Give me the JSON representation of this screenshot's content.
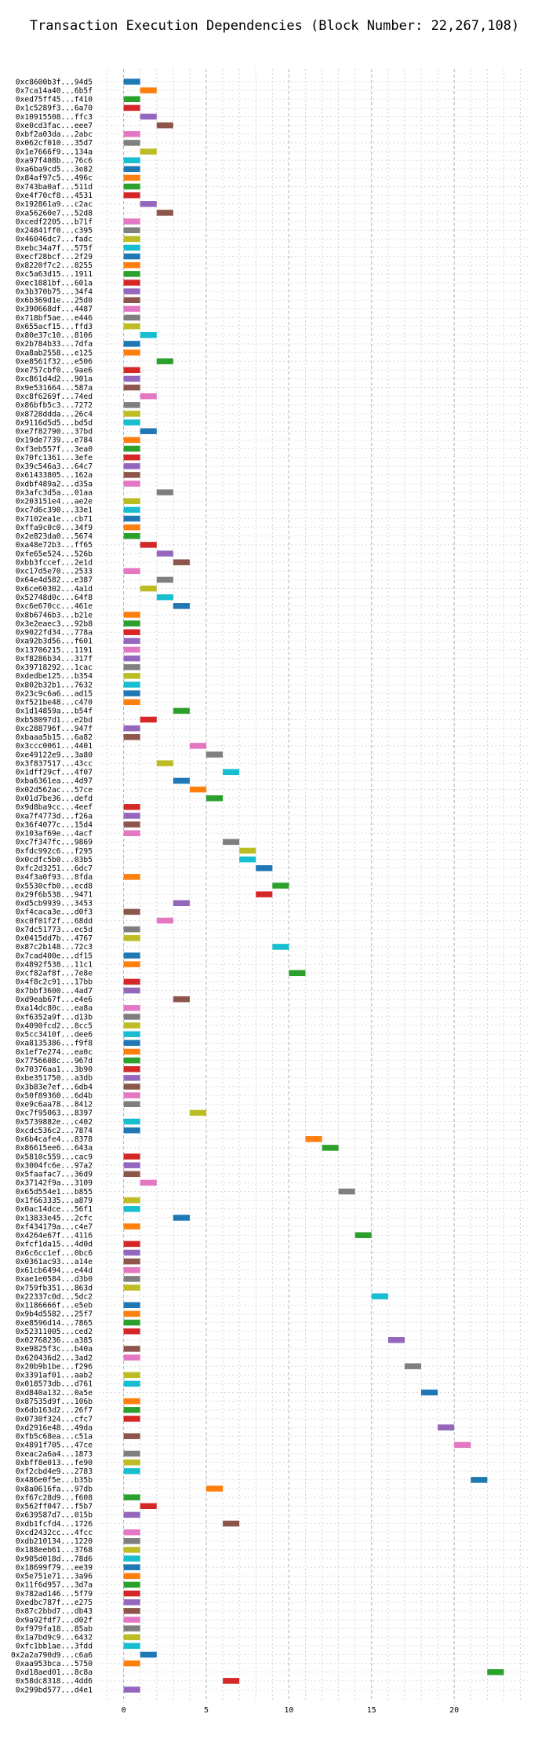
{
  "chart_data": {
    "type": "bar",
    "orientation": "horizontal-gantt",
    "title": "Transaction Execution Dependencies (Block Number: 22,267,108)",
    "xlabel": "",
    "ylabel": "",
    "xlim": [
      -1.5,
      24.5
    ],
    "xticks": [
      0,
      5,
      10,
      15,
      20
    ],
    "grid": true,
    "legend": "none",
    "bar_width": 1,
    "colors": {
      "blue": "#1f77b4",
      "orange": "#ff7f0e",
      "green": "#2ca02c",
      "red": "#d62728",
      "purple": "#9467bd",
      "brown": "#8c564b",
      "pink": "#e377c2",
      "gray": "#7f7f7f",
      "olive": "#bcbd22",
      "cyan": "#17becf"
    },
    "transactions": [
      {
        "label": "0xc8600b3f...94d5",
        "start": 0,
        "color": "blue"
      },
      {
        "label": "0x7ca14a40...6b5f",
        "start": 1,
        "color": "orange"
      },
      {
        "label": "0xed75ff45...f410",
        "start": 0,
        "color": "green"
      },
      {
        "label": "0x1c5289f3...6a70",
        "start": 0,
        "color": "red"
      },
      {
        "label": "0x10915508...ffc3",
        "start": 1,
        "color": "purple"
      },
      {
        "label": "0xe0cd3fac...eee7",
        "start": 2,
        "color": "brown"
      },
      {
        "label": "0xbf2a03da...2abc",
        "start": 0,
        "color": "pink"
      },
      {
        "label": "0x062cf010...35d7",
        "start": 0,
        "color": "gray"
      },
      {
        "label": "0x1e7666f9...134a",
        "start": 1,
        "color": "olive"
      },
      {
        "label": "0xa97f408b...76c6",
        "start": 0,
        "color": "cyan"
      },
      {
        "label": "0xa6ba9cd5...3e82",
        "start": 0,
        "color": "blue"
      },
      {
        "label": "0x84af97c5...496c",
        "start": 0,
        "color": "orange"
      },
      {
        "label": "0x743ba0af...511d",
        "start": 0,
        "color": "green"
      },
      {
        "label": "0xe4f70cf8...4531",
        "start": 0,
        "color": "red"
      },
      {
        "label": "0x192861a9...c2ac",
        "start": 1,
        "color": "purple"
      },
      {
        "label": "0xa56260e7...52d8",
        "start": 2,
        "color": "brown"
      },
      {
        "label": "0xcedf2205...b71f",
        "start": 0,
        "color": "pink"
      },
      {
        "label": "0x24841ff0...c395",
        "start": 0,
        "color": "gray"
      },
      {
        "label": "0x46046dc7...fadc",
        "start": 0,
        "color": "olive"
      },
      {
        "label": "0xebc34a7f...575f",
        "start": 0,
        "color": "cyan"
      },
      {
        "label": "0xecf28bcf...2f29",
        "start": 0,
        "color": "blue"
      },
      {
        "label": "0x8220f7c2...8255",
        "start": 0,
        "color": "orange"
      },
      {
        "label": "0xc5a63d15...1911",
        "start": 0,
        "color": "green"
      },
      {
        "label": "0xec1881bf...601a",
        "start": 0,
        "color": "red"
      },
      {
        "label": "0x3b370b75...34f4",
        "start": 0,
        "color": "purple"
      },
      {
        "label": "0x6b369d1e...25d0",
        "start": 0,
        "color": "brown"
      },
      {
        "label": "0x390668df...4487",
        "start": 0,
        "color": "pink"
      },
      {
        "label": "0x718bf5ae...e446",
        "start": 0,
        "color": "gray"
      },
      {
        "label": "0x655acf15...ffd3",
        "start": 0,
        "color": "olive"
      },
      {
        "label": "0x80e37c10...8106",
        "start": 1,
        "color": "cyan"
      },
      {
        "label": "0x2b784b33...7dfa",
        "start": 0,
        "color": "blue"
      },
      {
        "label": "0xa8ab2558...e125",
        "start": 0,
        "color": "orange"
      },
      {
        "label": "0xe8561f32...e506",
        "start": 2,
        "color": "green"
      },
      {
        "label": "0xe757cbf0...9ae6",
        "start": 0,
        "color": "red"
      },
      {
        "label": "0xc861d4d2...901a",
        "start": 0,
        "color": "purple"
      },
      {
        "label": "0x9e531664...587a",
        "start": 0,
        "color": "brown"
      },
      {
        "label": "0xc8f6269f...74ed",
        "start": 1,
        "color": "pink"
      },
      {
        "label": "0x86bfb5c3...7272",
        "start": 0,
        "color": "gray"
      },
      {
        "label": "0x8728ddda...26c4",
        "start": 0,
        "color": "olive"
      },
      {
        "label": "0x9116d5d5...bd5d",
        "start": 0,
        "color": "cyan"
      },
      {
        "label": "0xe7f82790...37bd",
        "start": 1,
        "color": "blue"
      },
      {
        "label": "0x19de7739...e784",
        "start": 0,
        "color": "orange"
      },
      {
        "label": "0xf3eb557f...3ea0",
        "start": 0,
        "color": "green"
      },
      {
        "label": "0x70fc1361...3efe",
        "start": 0,
        "color": "red"
      },
      {
        "label": "0x39c546a3...64c7",
        "start": 0,
        "color": "purple"
      },
      {
        "label": "0x61433805...162a",
        "start": 0,
        "color": "brown"
      },
      {
        "label": "0xdbf489a2...d35a",
        "start": 0,
        "color": "pink"
      },
      {
        "label": "0x3afc3d5a...01aa",
        "start": 2,
        "color": "gray"
      },
      {
        "label": "0x203151e4...ae2e",
        "start": 0,
        "color": "olive"
      },
      {
        "label": "0xc7d6c390...33e1",
        "start": 0,
        "color": "cyan"
      },
      {
        "label": "0x7102ea1e...cb71",
        "start": 0,
        "color": "blue"
      },
      {
        "label": "0xffa9c0c0...34f9",
        "start": 0,
        "color": "orange"
      },
      {
        "label": "0x2e823da0...5674",
        "start": 0,
        "color": "green"
      },
      {
        "label": "0xa48e72b3...ff65",
        "start": 1,
        "color": "red"
      },
      {
        "label": "0xfe65e524...526b",
        "start": 2,
        "color": "purple"
      },
      {
        "label": "0xbb3fccef...2e1d",
        "start": 3,
        "color": "brown"
      },
      {
        "label": "0xc17d5e70...2533",
        "start": 0,
        "color": "pink"
      },
      {
        "label": "0x64e4d582...e387",
        "start": 2,
        "color": "gray"
      },
      {
        "label": "0x6ce60302...4a1d",
        "start": 1,
        "color": "olive"
      },
      {
        "label": "0x52748d0c...64f8",
        "start": 2,
        "color": "cyan"
      },
      {
        "label": "0xc6e670cc...461e",
        "start": 3,
        "color": "blue"
      },
      {
        "label": "0x8b6746b3...b21e",
        "start": 0,
        "color": "orange"
      },
      {
        "label": "0x3e2eaec3...92b8",
        "start": 0,
        "color": "green"
      },
      {
        "label": "0x9022fd34...778a",
        "start": 0,
        "color": "red"
      },
      {
        "label": "0xa92b3d56...f601",
        "start": 0,
        "color": "purple"
      },
      {
        "label": "0x13706215...1191",
        "start": 0,
        "color": "pink"
      },
      {
        "label": "0xf8286b34...317f",
        "start": 0,
        "color": "purple"
      },
      {
        "label": "0x39718292...1cac",
        "start": 0,
        "color": "gray"
      },
      {
        "label": "0xdedbe125...b354",
        "start": 0,
        "color": "olive"
      },
      {
        "label": "0x802b32b1...7632",
        "start": 0,
        "color": "cyan"
      },
      {
        "label": "0x23c9c6a6...ad15",
        "start": 0,
        "color": "blue"
      },
      {
        "label": "0xf521be48...c470",
        "start": 0,
        "color": "orange"
      },
      {
        "label": "0x1d14859a...b54f",
        "start": 3,
        "color": "green"
      },
      {
        "label": "0xb58097d1...e2bd",
        "start": 1,
        "color": "red"
      },
      {
        "label": "0xc288796f...947f",
        "start": 0,
        "color": "purple"
      },
      {
        "label": "0xbaaa5b15...6a82",
        "start": 0,
        "color": "brown"
      },
      {
        "label": "0x3ccc0061...4401",
        "start": 4,
        "color": "pink"
      },
      {
        "label": "0xe49122e9...3a80",
        "start": 5,
        "color": "gray"
      },
      {
        "label": "0x3f837517...43cc",
        "start": 2,
        "color": "olive"
      },
      {
        "label": "0x1dff29cf...4f07",
        "start": 6,
        "color": "cyan"
      },
      {
        "label": "0xba6361ea...4d97",
        "start": 3,
        "color": "blue"
      },
      {
        "label": "0x02d562ac...57ce",
        "start": 4,
        "color": "orange"
      },
      {
        "label": "0x01d7be36...defd",
        "start": 5,
        "color": "green"
      },
      {
        "label": "0x9d8ba9cc...4eef",
        "start": 0,
        "color": "red"
      },
      {
        "label": "0xa7f4773d...f26a",
        "start": 0,
        "color": "purple"
      },
      {
        "label": "0x36f4077c...15d4",
        "start": 0,
        "color": "brown"
      },
      {
        "label": "0x103af69e...4acf",
        "start": 0,
        "color": "pink"
      },
      {
        "label": "0xc7f347fc...9869",
        "start": 6,
        "color": "gray"
      },
      {
        "label": "0xfdc992c6...f295",
        "start": 7,
        "color": "olive"
      },
      {
        "label": "0x0cdfc5b0...03b5",
        "start": 7,
        "color": "cyan"
      },
      {
        "label": "0xfc2d3251...6dc7",
        "start": 8,
        "color": "blue"
      },
      {
        "label": "0x4f3a0f93...8fda",
        "start": 0,
        "color": "orange"
      },
      {
        "label": "0x5530cfb0...ecd8",
        "start": 9,
        "color": "green"
      },
      {
        "label": "0x29f6b538...9471",
        "start": 8,
        "color": "red"
      },
      {
        "label": "0xd5cb9939...3453",
        "start": 3,
        "color": "purple"
      },
      {
        "label": "0xf4caca3e...d0f3",
        "start": 0,
        "color": "brown"
      },
      {
        "label": "0xc0f01f2f...68dd",
        "start": 2,
        "color": "pink"
      },
      {
        "label": "0x7dc51773...ec5d",
        "start": 0,
        "color": "gray"
      },
      {
        "label": "0x0415dd7b...4767",
        "start": 0,
        "color": "olive"
      },
      {
        "label": "0x87c2b148...72c3",
        "start": 9,
        "color": "cyan"
      },
      {
        "label": "0x7cad400e...df15",
        "start": 0,
        "color": "blue"
      },
      {
        "label": "0x4892f538...11c1",
        "start": 0,
        "color": "orange"
      },
      {
        "label": "0xcf82af8f...7e8e",
        "start": 10,
        "color": "green"
      },
      {
        "label": "0x4f8c2c91...17bb",
        "start": 0,
        "color": "red"
      },
      {
        "label": "0x7bbf3600...4ad7",
        "start": 0,
        "color": "purple"
      },
      {
        "label": "0xd9eab67f...e4e6",
        "start": 3,
        "color": "brown"
      },
      {
        "label": "0xa14dc80c...ea8a",
        "start": 0,
        "color": "pink"
      },
      {
        "label": "0xf6352a9f...d13b",
        "start": 0,
        "color": "gray"
      },
      {
        "label": "0x4090fcd2...8cc5",
        "start": 0,
        "color": "olive"
      },
      {
        "label": "0x5cc3410f...dee6",
        "start": 0,
        "color": "cyan"
      },
      {
        "label": "0xa8135386...f9f8",
        "start": 0,
        "color": "blue"
      },
      {
        "label": "0x1ef7e274...ea0c",
        "start": 0,
        "color": "orange"
      },
      {
        "label": "0x7756608c...967d",
        "start": 0,
        "color": "green"
      },
      {
        "label": "0x70376aa1...3b90",
        "start": 0,
        "color": "red"
      },
      {
        "label": "0xbe351750...a3db",
        "start": 0,
        "color": "purple"
      },
      {
        "label": "0x3b83e7ef...6db4",
        "start": 0,
        "color": "brown"
      },
      {
        "label": "0x50f89360...6d4b",
        "start": 0,
        "color": "pink"
      },
      {
        "label": "0xe9c6aa78...8412",
        "start": 0,
        "color": "gray"
      },
      {
        "label": "0xc7f95063...8397",
        "start": 4,
        "color": "olive"
      },
      {
        "label": "0x5739882e...c402",
        "start": 0,
        "color": "cyan"
      },
      {
        "label": "0xcdc536c2...7874",
        "start": 0,
        "color": "blue"
      },
      {
        "label": "0x6b4cafe4...8378",
        "start": 11,
        "color": "orange"
      },
      {
        "label": "0x86615ee6...643a",
        "start": 12,
        "color": "green"
      },
      {
        "label": "0x5810c559...cac9",
        "start": 0,
        "color": "red"
      },
      {
        "label": "0x3004fc6e...97a2",
        "start": 0,
        "color": "purple"
      },
      {
        "label": "0x5faafac7...36d9",
        "start": 0,
        "color": "brown"
      },
      {
        "label": "0x37142f9a...3109",
        "start": 1,
        "color": "pink"
      },
      {
        "label": "0x65d554e1...b855",
        "start": 13,
        "color": "gray"
      },
      {
        "label": "0x1f663335...a879",
        "start": 0,
        "color": "olive"
      },
      {
        "label": "0x0ac14dce...56f1",
        "start": 0,
        "color": "cyan"
      },
      {
        "label": "0x13833e45...2cfc",
        "start": 3,
        "color": "blue"
      },
      {
        "label": "0xf434179a...c4e7",
        "start": 0,
        "color": "orange"
      },
      {
        "label": "0x4264e67f...4116",
        "start": 14,
        "color": "green"
      },
      {
        "label": "0xfcf1da15...4d0d",
        "start": 0,
        "color": "red"
      },
      {
        "label": "0x6c6cc1ef...0bc6",
        "start": 0,
        "color": "purple"
      },
      {
        "label": "0x0361ac93...a14e",
        "start": 0,
        "color": "brown"
      },
      {
        "label": "0x61cb6494...e44d",
        "start": 0,
        "color": "pink"
      },
      {
        "label": "0xae1e0584...d3b0",
        "start": 0,
        "color": "gray"
      },
      {
        "label": "0x759fb351...863d",
        "start": 0,
        "color": "olive"
      },
      {
        "label": "0x22337c0d...5dc2",
        "start": 15,
        "color": "cyan"
      },
      {
        "label": "0x1186666f...e5eb",
        "start": 0,
        "color": "blue"
      },
      {
        "label": "0x9b4d5582...25f7",
        "start": 0,
        "color": "orange"
      },
      {
        "label": "0xe8596d14...7865",
        "start": 0,
        "color": "green"
      },
      {
        "label": "0x52311005...ced2",
        "start": 0,
        "color": "red"
      },
      {
        "label": "0x02768236...a385",
        "start": 16,
        "color": "purple"
      },
      {
        "label": "0xe9825f3c...b40a",
        "start": 0,
        "color": "brown"
      },
      {
        "label": "0x620436d2...3ad2",
        "start": 0,
        "color": "pink"
      },
      {
        "label": "0x20b9b1be...f296",
        "start": 17,
        "color": "gray"
      },
      {
        "label": "0x3391af01...aab2",
        "start": 0,
        "color": "olive"
      },
      {
        "label": "0x018573db...d761",
        "start": 0,
        "color": "cyan"
      },
      {
        "label": "0xd840a132...0a5e",
        "start": 18,
        "color": "blue"
      },
      {
        "label": "0x87535d9f...106b",
        "start": 0,
        "color": "orange"
      },
      {
        "label": "0x6db163d2...26f7",
        "start": 0,
        "color": "green"
      },
      {
        "label": "0x0730f324...cfc7",
        "start": 0,
        "color": "red"
      },
      {
        "label": "0xd2916e48...49da",
        "start": 19,
        "color": "purple"
      },
      {
        "label": "0xfb5c68ea...c51a",
        "start": 0,
        "color": "brown"
      },
      {
        "label": "0x4891f705...47ce",
        "start": 20,
        "color": "pink"
      },
      {
        "label": "0xeac2a6a4...1873",
        "start": 0,
        "color": "gray"
      },
      {
        "label": "0xbff8e013...fe90",
        "start": 0,
        "color": "olive"
      },
      {
        "label": "0xf2cbd4e9...2783",
        "start": 0,
        "color": "cyan"
      },
      {
        "label": "0x486e0f5e...b35b",
        "start": 21,
        "color": "blue"
      },
      {
        "label": "0x8a0616fa...97db",
        "start": 5,
        "color": "orange"
      },
      {
        "label": "0xf67c28d9...f608",
        "start": 0,
        "color": "green"
      },
      {
        "label": "0x562ff047...f5b7",
        "start": 1,
        "color": "red"
      },
      {
        "label": "0x639587d7...015b",
        "start": 0,
        "color": "purple"
      },
      {
        "label": "0xdb1fcfd4...1726",
        "start": 6,
        "color": "brown"
      },
      {
        "label": "0xcd2432cc...4fcc",
        "start": 0,
        "color": "pink"
      },
      {
        "label": "0xdb210134...1220",
        "start": 0,
        "color": "gray"
      },
      {
        "label": "0x188eeb61...3768",
        "start": 0,
        "color": "olive"
      },
      {
        "label": "0x905d018d...78d6",
        "start": 0,
        "color": "cyan"
      },
      {
        "label": "0x18699f79...ee39",
        "start": 0,
        "color": "blue"
      },
      {
        "label": "0x5e751e71...3a96",
        "start": 0,
        "color": "orange"
      },
      {
        "label": "0x11f6d957...3d7a",
        "start": 0,
        "color": "green"
      },
      {
        "label": "0x782ad146...5f79",
        "start": 0,
        "color": "red"
      },
      {
        "label": "0xedbc787f...e275",
        "start": 0,
        "color": "purple"
      },
      {
        "label": "0x87c2bbd7...db43",
        "start": 0,
        "color": "brown"
      },
      {
        "label": "0x9a92fdf7...d02f",
        "start": 0,
        "color": "pink"
      },
      {
        "label": "0xf979fa18...85ab",
        "start": 0,
        "color": "gray"
      },
      {
        "label": "0x1a7bd9c9...6432",
        "start": 0,
        "color": "olive"
      },
      {
        "label": "0xfc1bb1ae...3fdd",
        "start": 0,
        "color": "cyan"
      },
      {
        "label": "0x2a2a790d9...c6a6",
        "start": 1,
        "color": "blue"
      },
      {
        "label": "0xaa953bca...5750",
        "start": 0,
        "color": "orange"
      },
      {
        "label": "0xd18aed01...8c8a",
        "start": 22,
        "color": "green"
      },
      {
        "label": "0x58dc8318...4dd6",
        "start": 6,
        "color": "red"
      },
      {
        "label": "0x299bd577...d4e1",
        "start": 0,
        "color": "purple"
      }
    ]
  }
}
